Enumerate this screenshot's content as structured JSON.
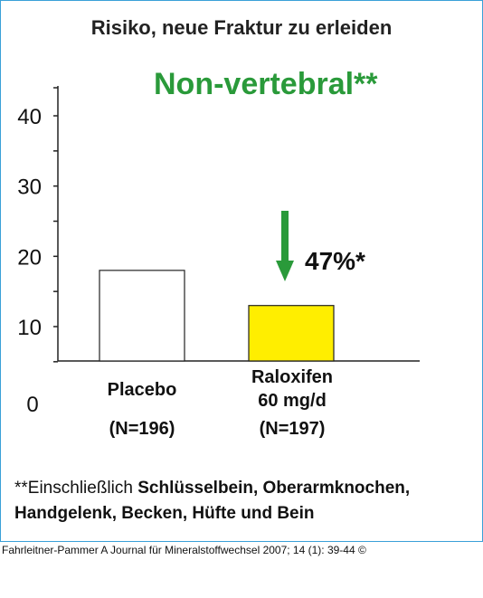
{
  "title": "Risiko, neue Fraktur zu erleiden",
  "subtitle": "Non-vertebral**",
  "chart_data": {
    "type": "bar",
    "title": "Risiko, neue Fraktur zu erleiden",
    "subtitle": "Non-vertebral**",
    "categories": [
      "Placebo",
      "Raloxifen 60 mg/d"
    ],
    "category_lines": [
      [
        "Placebo",
        "",
        "(N=196)"
      ],
      [
        "Raloxifen",
        "60 mg/d",
        "(N=197)"
      ]
    ],
    "values": [
      18,
      13
    ],
    "ylim": [
      5,
      40
    ],
    "yticks": [
      10,
      20,
      30,
      40
    ],
    "y_zero_label": "0",
    "bar_colors": [
      "#ffffff",
      "#ffee00"
    ],
    "annotation": {
      "text": "47%*",
      "arrow_color": "#2a9a3a"
    }
  },
  "footnote": {
    "line1_regular": "**Einschließlich ",
    "line1_bold": "Schlüsselbein, Oberarmknochen,",
    "line2_bold": "Handgelenk, Becken, Hüfte und Bein"
  },
  "source": "Fahrleitner-Pammer A Journal für Mineralstoffwechsel 2007; 14 (1): 39-44 ©"
}
